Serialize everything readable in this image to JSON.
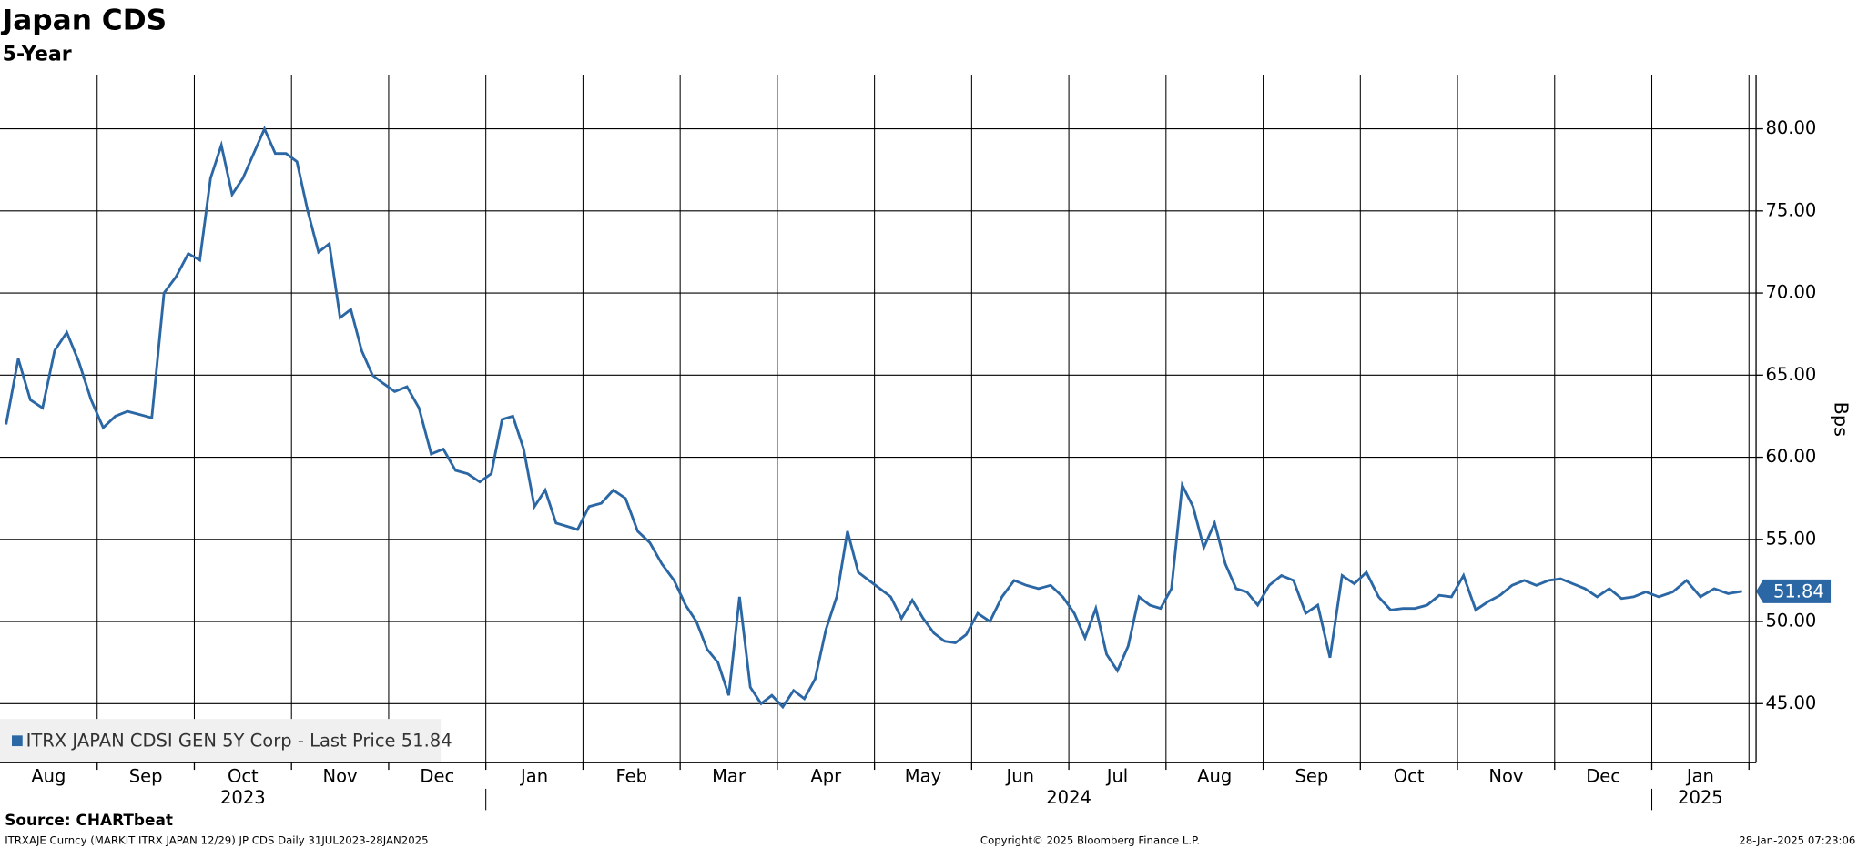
{
  "chart_data": {
    "type": "line",
    "title": "Japan CDS",
    "subtitle": "5-Year",
    "y_axis_label": "Bps",
    "source": "Source: CHARTbeat",
    "footer_left": "ITRXAJE Curncy (MARKIT ITRX JAPAN 12/29) JP CDS  Daily 31JUL2023-28JAN2025",
    "footer_center": "Copyright© 2025 Bloomberg Finance L.P.",
    "footer_right": "28-Jan-2025 07:23:06",
    "categories": [
      "Aug",
      "Sep",
      "Oct",
      "Nov",
      "Dec",
      "Jan",
      "Feb",
      "Mar",
      "Apr",
      "May",
      "Jun",
      "Jul",
      "Aug",
      "Sep",
      "Oct",
      "Nov",
      "Dec",
      "Jan"
    ],
    "year_labels": [
      "2023",
      "2024",
      "2025"
    ],
    "ylim": [
      41.4,
      83.3
    ],
    "yticks": [
      {
        "value": 45,
        "label": "45.00"
      },
      {
        "value": 50,
        "label": "50.00"
      },
      {
        "value": 55,
        "label": "55.00"
      },
      {
        "value": 60,
        "label": "60.00"
      },
      {
        "value": 65,
        "label": "65.00"
      },
      {
        "value": 70,
        "label": "70.00"
      },
      {
        "value": 75,
        "label": "75.00"
      },
      {
        "value": 80,
        "label": "80.00"
      }
    ],
    "grid": true,
    "legend": "bottom-left",
    "series": [
      {
        "name": "ITRX JAPAN CDSI GEN 5Y Corp - Last Price 51.84",
        "color": "#2b67a5",
        "x": [
          "2023-08",
          "2023-08",
          "2023-08",
          "2023-08",
          "2023-08",
          "2023-08",
          "2023-08",
          "2023-08",
          "2023-09",
          "2023-09",
          "2023-09",
          "2023-09",
          "2023-09",
          "2023-09",
          "2023-09",
          "2023-09",
          "2023-10",
          "2023-10",
          "2023-10",
          "2023-10",
          "2023-10",
          "2023-10",
          "2023-10",
          "2023-10",
          "2023-10",
          "2023-11",
          "2023-11",
          "2023-11",
          "2023-11",
          "2023-11",
          "2023-11",
          "2023-11",
          "2023-11",
          "2023-11",
          "2023-12",
          "2023-12",
          "2023-12",
          "2023-12",
          "2023-12",
          "2023-12",
          "2023-12",
          "2023-12",
          "2024-01",
          "2024-01",
          "2024-01",
          "2024-01",
          "2024-01",
          "2024-01",
          "2024-01",
          "2024-01",
          "2024-01",
          "2024-02",
          "2024-02",
          "2024-02",
          "2024-02",
          "2024-02",
          "2024-02",
          "2024-02",
          "2024-02",
          "2024-03",
          "2024-03",
          "2024-03",
          "2024-03",
          "2024-03",
          "2024-03",
          "2024-03",
          "2024-03",
          "2024-03",
          "2024-04",
          "2024-04",
          "2024-04",
          "2024-04",
          "2024-04",
          "2024-04",
          "2024-04",
          "2024-04",
          "2024-04",
          "2024-05",
          "2024-05",
          "2024-05",
          "2024-05",
          "2024-05",
          "2024-05",
          "2024-05",
          "2024-05",
          "2024-05",
          "2024-06",
          "2024-06",
          "2024-06",
          "2024-06",
          "2024-06",
          "2024-06",
          "2024-06",
          "2024-06",
          "2024-07",
          "2024-07",
          "2024-07",
          "2024-07",
          "2024-07",
          "2024-07",
          "2024-07",
          "2024-07",
          "2024-07",
          "2024-08",
          "2024-08",
          "2024-08",
          "2024-08",
          "2024-08",
          "2024-08",
          "2024-08",
          "2024-08",
          "2024-08",
          "2024-09",
          "2024-09",
          "2024-09",
          "2024-09",
          "2024-09",
          "2024-09",
          "2024-09",
          "2024-09",
          "2024-10",
          "2024-10",
          "2024-10",
          "2024-10",
          "2024-10",
          "2024-10",
          "2024-10",
          "2024-10",
          "2024-11",
          "2024-11",
          "2024-11",
          "2024-11",
          "2024-11",
          "2024-11",
          "2024-11",
          "2024-11",
          "2024-12",
          "2024-12",
          "2024-12",
          "2024-12",
          "2024-12",
          "2024-12",
          "2024-12",
          "2024-12",
          "2025-01",
          "2025-01",
          "2025-01",
          "2025-01",
          "2025-01",
          "2025-01",
          "2025-01"
        ],
        "values": [
          62,
          66,
          63.5,
          63,
          66.5,
          67.6,
          65.8,
          63.5,
          61.8,
          62.5,
          62.8,
          62.6,
          62.4,
          70,
          71,
          72.4,
          72,
          77,
          79,
          76,
          77,
          78.5,
          80,
          78.5,
          78.5,
          78,
          75,
          72.5,
          73,
          68.5,
          69,
          66.5,
          65,
          64.5,
          64,
          64.3,
          63,
          60.2,
          60.5,
          59.2,
          59,
          58.5,
          59,
          62.3,
          62.5,
          60.5,
          57,
          58,
          56,
          55.8,
          55.6,
          57,
          57.2,
          58,
          57.5,
          55.5,
          54.8,
          53.5,
          52.5,
          51,
          50,
          48.3,
          47.5,
          45.5,
          51.5,
          46,
          45,
          45.5,
          44.8,
          45.8,
          45.3,
          46.5,
          49.5,
          51.5,
          55.5,
          53,
          52.5,
          52,
          51.5,
          50.2,
          51.3,
          50.2,
          49.3,
          48.8,
          48.7,
          49.2,
          50.5,
          50,
          51.5,
          52.5,
          52.2,
          52,
          52.2,
          51.5,
          50.5,
          49,
          50.8,
          48,
          47,
          48.5,
          51.5,
          51,
          50.8,
          52,
          58.3,
          57,
          54.5,
          56,
          53.5,
          52,
          51.8,
          51,
          52.2,
          52.8,
          52.5,
          50.5,
          51,
          47.8,
          52.8,
          52.3,
          53,
          51.5,
          50.7,
          50.8,
          50.8,
          51,
          51.6,
          51.5,
          52.8,
          50.7,
          51.2,
          51.6,
          52.2,
          52.5,
          52.2,
          52.5,
          52.6,
          52.3,
          52,
          51.5,
          52,
          51.4,
          51.5,
          51.8,
          51.5,
          51.8,
          52.5,
          51.5,
          52,
          51.7,
          51.84
        ]
      }
    ]
  }
}
